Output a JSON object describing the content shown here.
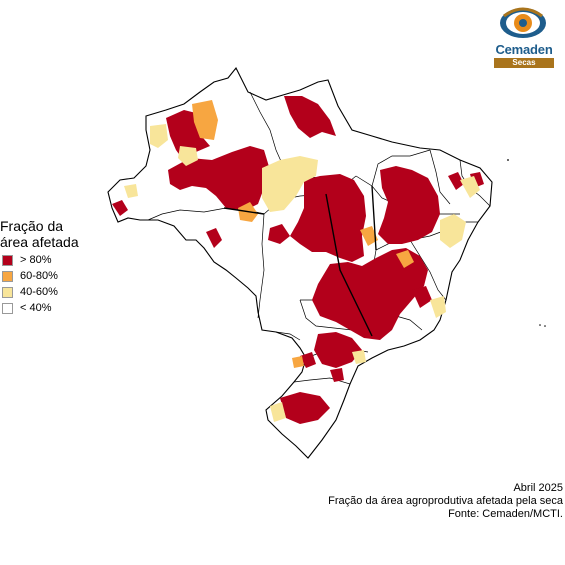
{
  "logo": {
    "name": "Cemaden",
    "subtitle": "Secas",
    "colors": {
      "blue": "#1e5d8c",
      "orange": "#e88b1a",
      "brown": "#a9741c"
    }
  },
  "legend": {
    "title_line1": "Fração da",
    "title_line2": "área afetada",
    "items": [
      {
        "label": "> 80%",
        "color": "#b3001b"
      },
      {
        "label": "60-80%",
        "color": "#f7a641"
      },
      {
        "label": "40-60%",
        "color": "#f8e59a"
      },
      {
        "label": "< 40%",
        "color": "#ffffff"
      }
    ]
  },
  "footer": {
    "date": "Abril 2025",
    "description": "Fração da área agroprodutiva afetada pela seca",
    "source": "Fonte: Cemaden/MCTI."
  }
}
